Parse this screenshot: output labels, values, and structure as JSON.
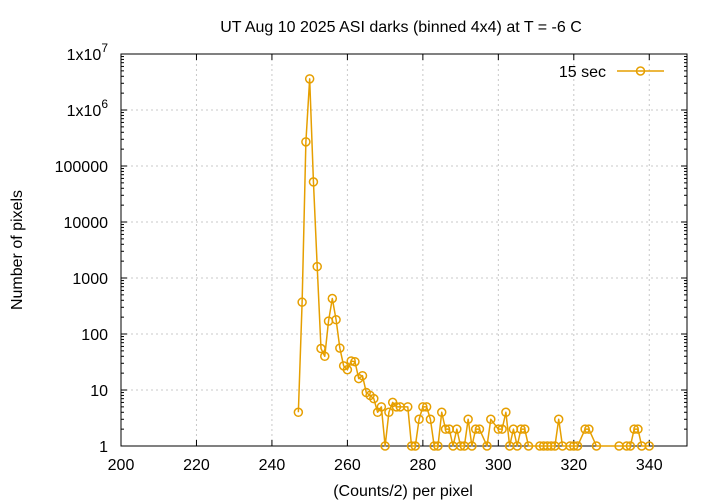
{
  "chart_data": {
    "type": "line",
    "title": "UT Aug 10 2025 ASI darks (binned 4x4) at T = -6 C",
    "xlabel": "(Counts/2) per pixel",
    "ylabel": "Number of pixels",
    "xlim": [
      200,
      350
    ],
    "ylim": [
      1,
      10000000
    ],
    "yscale": "log",
    "grid": true,
    "legend_position": "top-right",
    "x_ticks": [
      "200",
      "220",
      "240",
      "260",
      "280",
      "300",
      "320",
      "340"
    ],
    "x_tick_values": [
      200,
      220,
      240,
      260,
      280,
      300,
      320,
      340
    ],
    "y_ticks": [
      {
        "value": 1,
        "label": "1"
      },
      {
        "value": 10,
        "label": "10"
      },
      {
        "value": 100,
        "label": "100"
      },
      {
        "value": 1000,
        "label": "1000"
      },
      {
        "value": 10000,
        "label": "10000"
      },
      {
        "value": 100000,
        "label": "100000"
      },
      {
        "value": 1000000,
        "label": "1x10",
        "sup": "6"
      },
      {
        "value": 10000000,
        "label": "1x10",
        "sup": "7"
      }
    ],
    "series": [
      {
        "name": "15 sec",
        "color": "#e69f00",
        "points": [
          [
            247,
            4
          ],
          [
            248,
            370
          ],
          [
            249,
            270000
          ],
          [
            250,
            3600000
          ],
          [
            251,
            52000
          ],
          [
            252,
            1600
          ],
          [
            253,
            55
          ],
          [
            254,
            40
          ],
          [
            255,
            170
          ],
          [
            256,
            430
          ],
          [
            257,
            180
          ],
          [
            258,
            56
          ],
          [
            259,
            27
          ],
          [
            260,
            23
          ],
          [
            261,
            33
          ],
          [
            262,
            32
          ],
          [
            263,
            16
          ],
          [
            264,
            18
          ],
          [
            265,
            9
          ],
          [
            266,
            8
          ],
          [
            267,
            7
          ],
          [
            268,
            4
          ],
          [
            269,
            5
          ],
          [
            270,
            1
          ],
          [
            271,
            4
          ],
          [
            272,
            6
          ],
          [
            273,
            5
          ],
          [
            274,
            5
          ],
          [
            276,
            5
          ],
          [
            277,
            1
          ],
          [
            278,
            1
          ],
          [
            279,
            3
          ],
          [
            280,
            5
          ],
          [
            281,
            5
          ],
          [
            282,
            3
          ],
          [
            283,
            1
          ],
          [
            284,
            1
          ],
          [
            285,
            4
          ],
          [
            286,
            2
          ],
          [
            287,
            2
          ],
          [
            288,
            1
          ],
          [
            289,
            2
          ],
          [
            290,
            1
          ],
          [
            291,
            1
          ],
          [
            292,
            3
          ],
          [
            293,
            1
          ],
          [
            294,
            2
          ],
          [
            295,
            2
          ],
          [
            297,
            1
          ],
          [
            298,
            3
          ],
          [
            300,
            2
          ],
          [
            301,
            2
          ],
          [
            302,
            4
          ],
          [
            303,
            1
          ],
          [
            304,
            2
          ],
          [
            305,
            1
          ],
          [
            306,
            2
          ],
          [
            307,
            2
          ],
          [
            308,
            1
          ],
          [
            311,
            1
          ],
          [
            312,
            1
          ],
          [
            313,
            1
          ],
          [
            314,
            1
          ],
          [
            315,
            1
          ],
          [
            316,
            3
          ],
          [
            317,
            1
          ],
          [
            319,
            1
          ],
          [
            320,
            1
          ],
          [
            321,
            1
          ],
          [
            323,
            2
          ],
          [
            324,
            2
          ],
          [
            326,
            1
          ],
          [
            332,
            1
          ],
          [
            334,
            1
          ],
          [
            335,
            1
          ],
          [
            336,
            2
          ],
          [
            337,
            2
          ],
          [
            338,
            1
          ],
          [
            340,
            1
          ]
        ]
      }
    ]
  }
}
